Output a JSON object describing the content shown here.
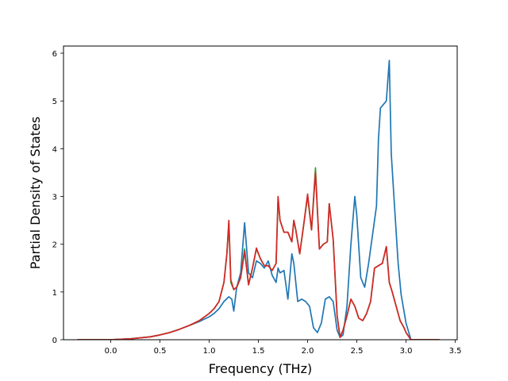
{
  "chart_data": {
    "type": "line",
    "title": "",
    "xlabel": "Frequency (THz)",
    "ylabel": "Partial Density of States",
    "xlim": [
      -0.48,
      3.52
    ],
    "ylim": [
      0,
      6.15
    ],
    "xticks": [
      0.0,
      0.5,
      1.0,
      1.5,
      2.0,
      2.5,
      3.0,
      3.5
    ],
    "xtick_labels": [
      "0.0",
      "0.5",
      "1.0",
      "1.5",
      "2.0",
      "2.5",
      "3.0",
      "3.5"
    ],
    "yticks": [
      0,
      1,
      2,
      3,
      4,
      5,
      6
    ],
    "ytick_labels": [
      "0",
      "1",
      "2",
      "3",
      "4",
      "5",
      "6"
    ],
    "grid": false,
    "legend": "none",
    "series": [
      {
        "color": "#1f77b4",
        "x": [
          -0.34,
          0.0,
          0.2,
          0.4,
          0.5,
          0.6,
          0.7,
          0.8,
          0.9,
          1.0,
          1.05,
          1.1,
          1.15,
          1.2,
          1.23,
          1.25,
          1.28,
          1.32,
          1.36,
          1.4,
          1.44,
          1.48,
          1.52,
          1.56,
          1.6,
          1.64,
          1.68,
          1.7,
          1.72,
          1.76,
          1.8,
          1.84,
          1.86,
          1.9,
          1.94,
          1.98,
          2.02,
          2.06,
          2.08,
          2.1,
          2.14,
          2.18,
          2.22,
          2.26,
          2.3,
          2.33,
          2.36,
          2.4,
          2.44,
          2.48,
          2.5,
          2.54,
          2.58,
          2.62,
          2.66,
          2.7,
          2.72,
          2.74,
          2.76,
          2.78,
          2.8,
          2.83,
          2.85,
          2.88,
          2.92,
          2.95,
          3.0,
          3.05,
          3.15,
          3.34
        ],
        "y": [
          0.0,
          0.0,
          0.02,
          0.06,
          0.1,
          0.15,
          0.22,
          0.3,
          0.38,
          0.48,
          0.55,
          0.65,
          0.8,
          0.9,
          0.85,
          0.6,
          1.1,
          1.4,
          2.45,
          1.4,
          1.3,
          1.65,
          1.6,
          1.5,
          1.65,
          1.35,
          1.2,
          1.5,
          1.4,
          1.45,
          0.85,
          1.8,
          1.6,
          0.8,
          0.85,
          0.8,
          0.7,
          0.25,
          0.2,
          0.15,
          0.35,
          0.85,
          0.9,
          0.8,
          0.2,
          0.05,
          0.1,
          0.7,
          2.0,
          3.0,
          2.6,
          1.3,
          1.1,
          1.6,
          2.2,
          2.8,
          4.2,
          4.85,
          4.9,
          4.95,
          5.0,
          5.85,
          3.9,
          2.9,
          1.6,
          0.95,
          0.35,
          0.0,
          0.0,
          0.0
        ]
      },
      {
        "color": "#2ca02c",
        "x": [
          -0.34,
          0.0,
          0.2,
          0.4,
          0.5,
          0.6,
          0.7,
          0.8,
          0.9,
          1.0,
          1.05,
          1.1,
          1.15,
          1.18,
          1.2,
          1.22,
          1.25,
          1.28,
          1.32,
          1.36,
          1.4,
          1.44,
          1.48,
          1.52,
          1.56,
          1.6,
          1.64,
          1.68,
          1.7,
          1.72,
          1.76,
          1.8,
          1.84,
          1.86,
          1.88,
          1.92,
          1.96,
          2.0,
          2.04,
          2.08,
          2.1,
          2.12,
          2.16,
          2.2,
          2.22,
          2.26,
          2.3,
          2.33,
          2.36,
          2.4,
          2.44,
          2.48,
          2.52,
          2.56,
          2.6,
          2.64,
          2.68,
          2.72,
          2.76,
          2.8,
          2.83,
          2.86,
          2.9,
          2.94,
          2.98,
          3.0,
          3.05,
          3.15,
          3.34
        ],
        "y": [
          0.0,
          0.0,
          0.02,
          0.06,
          0.1,
          0.15,
          0.22,
          0.3,
          0.4,
          0.55,
          0.65,
          0.8,
          1.2,
          1.8,
          2.45,
          1.2,
          1.05,
          1.1,
          1.3,
          1.9,
          1.15,
          1.5,
          1.9,
          1.7,
          1.55,
          1.55,
          1.45,
          1.6,
          2.95,
          2.5,
          2.25,
          2.25,
          2.05,
          2.5,
          2.3,
          1.8,
          2.4,
          3.0,
          2.3,
          3.6,
          2.7,
          1.9,
          2.0,
          2.05,
          2.85,
          2.1,
          0.5,
          0.05,
          0.2,
          0.5,
          0.85,
          0.7,
          0.45,
          0.4,
          0.55,
          0.8,
          1.5,
          1.55,
          1.6,
          1.95,
          1.2,
          1.0,
          0.7,
          0.4,
          0.25,
          0.15,
          0.0,
          0.0,
          0.0
        ]
      },
      {
        "color": "#d62728",
        "x": [
          -0.34,
          0.0,
          0.2,
          0.4,
          0.5,
          0.6,
          0.7,
          0.8,
          0.9,
          1.0,
          1.05,
          1.1,
          1.15,
          1.18,
          1.2,
          1.22,
          1.25,
          1.28,
          1.32,
          1.36,
          1.4,
          1.44,
          1.48,
          1.52,
          1.56,
          1.6,
          1.64,
          1.68,
          1.7,
          1.72,
          1.76,
          1.8,
          1.84,
          1.86,
          1.88,
          1.92,
          1.96,
          2.0,
          2.04,
          2.08,
          2.1,
          2.12,
          2.16,
          2.2,
          2.22,
          2.26,
          2.3,
          2.33,
          2.36,
          2.4,
          2.44,
          2.48,
          2.52,
          2.56,
          2.6,
          2.64,
          2.68,
          2.72,
          2.76,
          2.8,
          2.83,
          2.86,
          2.9,
          2.94,
          2.98,
          3.0,
          3.05,
          3.15,
          3.34
        ],
        "y": [
          0.0,
          0.0,
          0.02,
          0.06,
          0.1,
          0.15,
          0.22,
          0.3,
          0.4,
          0.55,
          0.65,
          0.8,
          1.2,
          1.8,
          2.5,
          1.25,
          1.05,
          1.1,
          1.3,
          1.85,
          1.15,
          1.5,
          1.92,
          1.7,
          1.55,
          1.55,
          1.45,
          1.6,
          3.0,
          2.5,
          2.25,
          2.25,
          2.05,
          2.5,
          2.3,
          1.8,
          2.4,
          3.05,
          2.3,
          3.5,
          2.7,
          1.9,
          2.0,
          2.05,
          2.85,
          2.1,
          0.5,
          0.05,
          0.2,
          0.5,
          0.85,
          0.7,
          0.45,
          0.4,
          0.55,
          0.8,
          1.5,
          1.55,
          1.6,
          1.95,
          1.2,
          1.0,
          0.7,
          0.4,
          0.25,
          0.15,
          0.0,
          0.0,
          0.0
        ]
      }
    ]
  }
}
